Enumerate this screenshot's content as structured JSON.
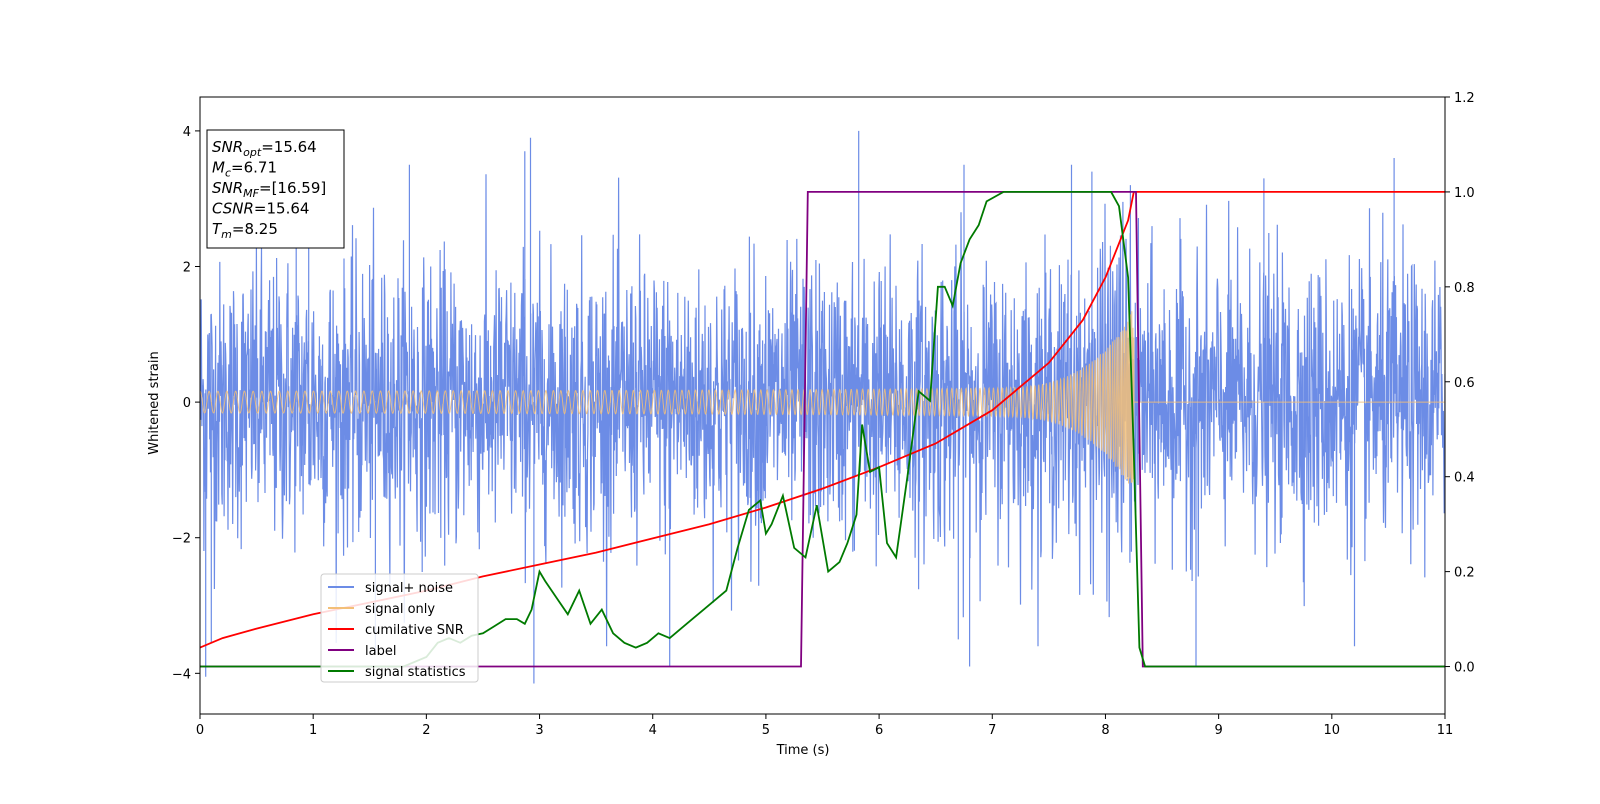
{
  "chart_data": {
    "type": "line",
    "xlabel": "Time (s)",
    "ylabel": "Whitened strain",
    "xlim": [
      0,
      11
    ],
    "ylim_left": [
      -4.6,
      4.5
    ],
    "ylim_right": [
      -0.1,
      1.2
    ],
    "xticks": [
      "0",
      "1",
      "2",
      "3",
      "4",
      "5",
      "6",
      "7",
      "8",
      "9",
      "10",
      "11"
    ],
    "yticks_left": [
      "4",
      "2",
      "0",
      "−2",
      "−4"
    ],
    "yticks_left_values": [
      4,
      2,
      0,
      -2,
      -4
    ],
    "yticks_right": [
      "1.2",
      "1.0",
      "0.8",
      "0.6",
      "0.4",
      "0.2",
      "0.0"
    ],
    "yticks_right_values": [
      1.2,
      1.0,
      0.8,
      0.6,
      0.4,
      0.2,
      0.0
    ],
    "grid": false,
    "legend_position": "lower-left",
    "annotation": {
      "lines": [
        {
          "sym": "SNR",
          "sub": "opt",
          "val": "=15.64"
        },
        {
          "sym": "M",
          "sub": "c",
          "val": "=6.71"
        },
        {
          "sym": "SNR",
          "sub": "MF",
          "val": "=[16.59]"
        },
        {
          "sym": "CSNR",
          "sub": "",
          "val": "=15.64"
        },
        {
          "sym": "T",
          "sub": "m",
          "val": "=8.25"
        }
      ]
    },
    "series": [
      {
        "name": "signal+ noise",
        "color": "#6c8ce6",
        "axis": "left",
        "description_values": {
          "noise_std": 1.0,
          "range": [
            -4.1,
            4.0
          ]
        },
        "spikes": [
          [
            0.85,
            2.75
          ],
          [
            0.96,
            2.9
          ],
          [
            2.87,
            3.7
          ],
          [
            2.92,
            3.9
          ],
          [
            5.82,
            4.0
          ],
          [
            7.7,
            3.5
          ],
          [
            7.88,
            3.4
          ],
          [
            8.22,
            3.2
          ],
          [
            10.55,
            3.6
          ],
          [
            1.85,
            3.5
          ],
          [
            6.75,
            3.5
          ],
          [
            9.4,
            3.3
          ],
          [
            2.95,
            -4.15
          ],
          [
            4.15,
            -3.9
          ],
          [
            6.8,
            -3.9
          ],
          [
            8.8,
            -3.9
          ],
          [
            0.05,
            -4.05
          ],
          [
            0.1,
            -3.55
          ],
          [
            1.55,
            -3.7
          ],
          [
            6.7,
            -3.5
          ],
          [
            10.2,
            -3.6
          ]
        ]
      },
      {
        "name": "signal only",
        "color": "#f3bf78",
        "axis": "left",
        "chirp": {
          "t_start": 0,
          "t_merge": 8.25,
          "amp_start": 0.08,
          "amp_end": 1.5
        }
      },
      {
        "name": "cumilative SNR",
        "color": "#ff0000",
        "axis": "right",
        "x": [
          0.0,
          0.2,
          0.5,
          1.0,
          1.5,
          2.0,
          2.5,
          3.0,
          3.5,
          4.0,
          4.5,
          5.0,
          5.5,
          6.0,
          6.5,
          7.0,
          7.5,
          7.8,
          8.0,
          8.1,
          8.2,
          8.25,
          11.0
        ],
        "y": [
          0.04,
          0.06,
          0.08,
          0.11,
          0.135,
          0.16,
          0.19,
          0.215,
          0.24,
          0.27,
          0.3,
          0.335,
          0.375,
          0.42,
          0.47,
          0.54,
          0.64,
          0.73,
          0.82,
          0.88,
          0.94,
          1.0,
          1.0
        ]
      },
      {
        "name": "label",
        "color": "#800080",
        "axis": "right",
        "x": [
          0.0,
          5.31,
          5.37,
          8.27,
          8.33,
          11.0
        ],
        "y": [
          0.0,
          0.0,
          1.0,
          1.0,
          0.0,
          0.0
        ]
      },
      {
        "name": "signal statistics",
        "color": "#007a00",
        "axis": "right",
        "x": [
          0.0,
          0.5,
          1.0,
          1.5,
          1.8,
          2.0,
          2.1,
          2.2,
          2.3,
          2.4,
          2.5,
          2.6,
          2.7,
          2.8,
          2.87,
          2.93,
          3.0,
          3.05,
          3.15,
          3.25,
          3.35,
          3.45,
          3.55,
          3.65,
          3.75,
          3.85,
          3.95,
          4.05,
          4.15,
          4.25,
          4.35,
          4.45,
          4.55,
          4.65,
          4.75,
          4.85,
          4.95,
          5.0,
          5.05,
          5.15,
          5.25,
          5.35,
          5.45,
          5.55,
          5.65,
          5.72,
          5.8,
          5.85,
          5.92,
          6.0,
          6.07,
          6.15,
          6.25,
          6.35,
          6.45,
          6.52,
          6.58,
          6.65,
          6.72,
          6.8,
          6.88,
          6.95,
          7.1,
          7.3,
          7.5,
          7.7,
          7.9,
          8.05,
          8.12,
          8.2,
          8.25,
          8.3,
          8.35,
          9.0,
          11.0
        ],
        "y": [
          0.0,
          0.0,
          0.0,
          0.0,
          0.0,
          0.02,
          0.05,
          0.06,
          0.05,
          0.065,
          0.07,
          0.085,
          0.1,
          0.1,
          0.09,
          0.12,
          0.2,
          0.18,
          0.145,
          0.11,
          0.16,
          0.09,
          0.12,
          0.07,
          0.05,
          0.04,
          0.05,
          0.07,
          0.06,
          0.08,
          0.1,
          0.12,
          0.14,
          0.16,
          0.25,
          0.33,
          0.35,
          0.28,
          0.3,
          0.36,
          0.25,
          0.23,
          0.34,
          0.2,
          0.22,
          0.26,
          0.32,
          0.51,
          0.41,
          0.42,
          0.26,
          0.23,
          0.4,
          0.58,
          0.56,
          0.8,
          0.8,
          0.76,
          0.85,
          0.9,
          0.93,
          0.98,
          1.0,
          1.0,
          1.0,
          1.0,
          1.0,
          1.0,
          0.97,
          0.82,
          0.45,
          0.04,
          0.0,
          0.0,
          0.0
        ]
      }
    ]
  }
}
